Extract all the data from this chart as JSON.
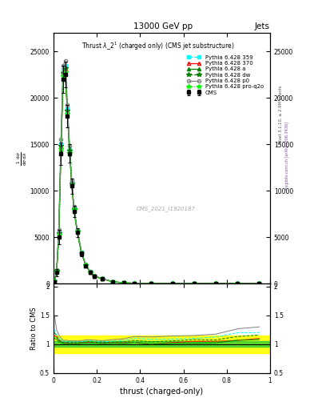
{
  "title_top": "13000 GeV pp",
  "title_right": "Jets",
  "title_main": "Thrust $\\lambda\\_2^1$ (charged only) (CMS jet substructure)",
  "xlabel": "thrust (charged-only)",
  "ylabel_ratio": "Ratio to CMS",
  "watermark": "CMS_2021_I1920187",
  "rivet_label": "Rivet 3.1.10, ≥ 2.9M events",
  "mcplots_label": "mcplots.cern.ch [arXiv:1306.3436]",
  "ylim_main": [
    0,
    27000
  ],
  "ylim_ratio": [
    0.5,
    2.05
  ],
  "xlim": [
    0.0,
    1.0
  ],
  "thrust_bins": [
    0.0,
    0.01,
    0.02,
    0.03,
    0.04,
    0.05,
    0.06,
    0.07,
    0.08,
    0.09,
    0.1,
    0.12,
    0.14,
    0.16,
    0.18,
    0.2,
    0.25,
    0.3,
    0.35,
    0.4,
    0.5,
    0.6,
    0.7,
    0.8,
    0.9,
    1.0
  ],
  "cms_values": [
    200,
    1200,
    5000,
    14000,
    22000,
    22500,
    18000,
    14000,
    10500,
    7800,
    5500,
    3200,
    1900,
    1200,
    780,
    500,
    190,
    75,
    30,
    12,
    3.5,
    1.0,
    0.4,
    0.15,
    0.05
  ],
  "cms_errors": [
    100,
    400,
    800,
    1200,
    1500,
    1400,
    1200,
    1000,
    800,
    600,
    450,
    280,
    170,
    110,
    70,
    45,
    20,
    10,
    5,
    3,
    1.0,
    0.4,
    0.2,
    0.08,
    0.03
  ],
  "pythia_359_values": [
    250,
    1400,
    5500,
    15000,
    23000,
    23500,
    18800,
    14500,
    10900,
    8100,
    5700,
    3350,
    2000,
    1270,
    820,
    520,
    200,
    80,
    33,
    13,
    3.8,
    1.1,
    0.45,
    0.18,
    0.06
  ],
  "pythia_370_values": [
    230,
    1350,
    5300,
    14600,
    22500,
    23000,
    18400,
    14200,
    10700,
    7950,
    5600,
    3280,
    1960,
    1240,
    800,
    510,
    195,
    77,
    31,
    12,
    3.6,
    1.05,
    0.42,
    0.16,
    0.055
  ],
  "pythia_a_values": [
    220,
    1300,
    5200,
    14400,
    22200,
    22700,
    18200,
    14000,
    10600,
    7900,
    5550,
    3250,
    1940,
    1230,
    795,
    505,
    193,
    76,
    31,
    12,
    3.55,
    1.02,
    0.41,
    0.16,
    0.054
  ],
  "pythia_dw_values": [
    240,
    1380,
    5400,
    14800,
    22700,
    23200,
    18600,
    14300,
    10800,
    8000,
    5650,
    3300,
    1980,
    1255,
    810,
    515,
    197,
    78,
    32,
    12.5,
    3.7,
    1.08,
    0.43,
    0.17,
    0.058
  ],
  "pythia_p0_values": [
    300,
    1500,
    5800,
    15500,
    23500,
    24000,
    19200,
    14800,
    11100,
    8250,
    5800,
    3400,
    2040,
    1290,
    835,
    530,
    205,
    82,
    34,
    13.5,
    4.0,
    1.15,
    0.47,
    0.19,
    0.065
  ],
  "pythia_proq2o_values": [
    225,
    1320,
    5250,
    14500,
    22300,
    22800,
    18300,
    14100,
    10650,
    7920,
    5570,
    3260,
    1950,
    1235,
    797,
    507,
    194,
    77,
    31,
    12.1,
    3.57,
    1.03,
    0.415,
    0.162,
    0.054
  ],
  "ratio_green_upper": 1.05,
  "ratio_green_lower": 0.95,
  "ratio_yellow_upper": 1.15,
  "ratio_yellow_lower": 0.85,
  "yticks_main": [
    0,
    5000,
    10000,
    15000,
    20000,
    25000
  ],
  "ytick_labels_main": [
    "0",
    "5000",
    "10000",
    "15000",
    "20000",
    "25000"
  ],
  "yticks_ratio": [
    0.5,
    1.0,
    1.5,
    2.0
  ],
  "ytick_labels_ratio": [
    "0.5",
    "1",
    "1.5",
    "2"
  ],
  "xticks": [
    0.0,
    0.2,
    0.4,
    0.6,
    0.8,
    1.0
  ],
  "xtick_labels": [
    "0",
    "0.2",
    "0.4",
    "0.6",
    "0.8",
    "1"
  ]
}
